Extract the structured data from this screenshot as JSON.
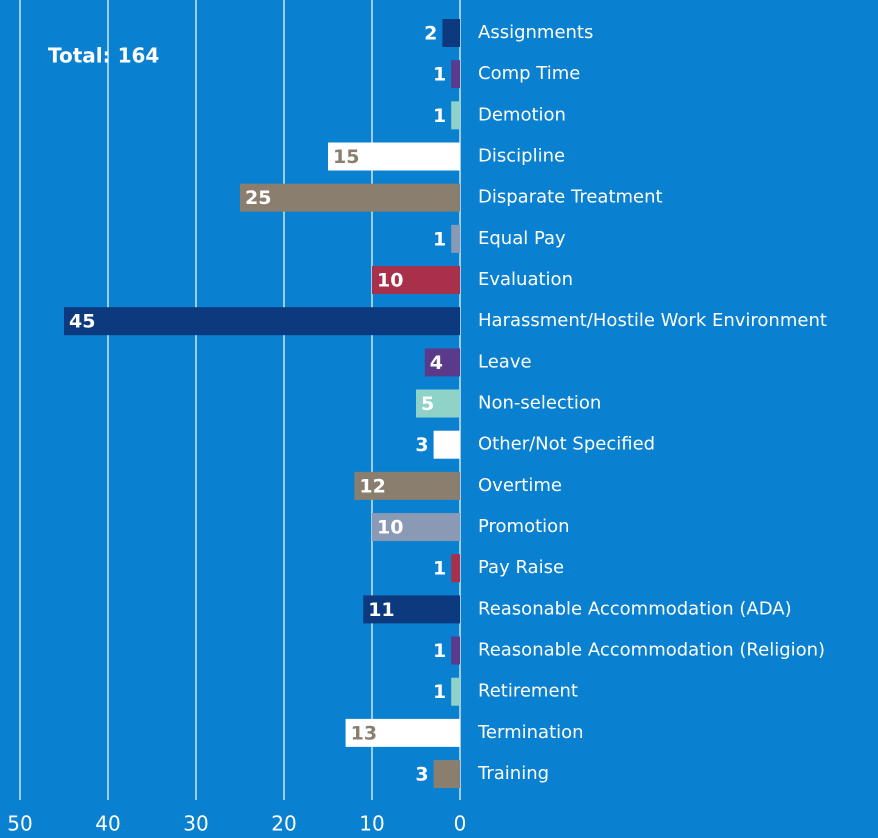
{
  "chart_data": {
    "type": "bar",
    "orientation": "horizontal",
    "annotation": "Total: 164",
    "categories": [
      "Assignments",
      "Comp Time",
      "Demotion",
      "Discipline",
      "Disparate Treatment",
      "Equal Pay",
      "Evaluation",
      "Harassment/Hostile Work Environment",
      "Leave",
      "Non-selection",
      "Other/Not Specified",
      "Overtime",
      "Promotion",
      "Pay Raise",
      "Reasonable Accommodation (ADA)",
      "Reasonable Accommodation (Religion)",
      "Retirement",
      "Termination",
      "Training"
    ],
    "values": [
      2,
      1,
      1,
      15,
      25,
      1,
      10,
      45,
      4,
      5,
      3,
      12,
      10,
      1,
      11,
      1,
      1,
      13,
      3
    ],
    "colors": [
      "#0d3a7e",
      "#5b3a8c",
      "#8fd3c8",
      "#ffffff",
      "#8a7f6e",
      "#8a9ab5",
      "#a8304a",
      "#0d3a7e",
      "#5b3a8c",
      "#8fd3c8",
      "#ffffff",
      "#8a7f6e",
      "#8a9ab5",
      "#a8304a",
      "#0d3a7e",
      "#5b3a8c",
      "#8fd3c8",
      "#ffffff",
      "#8a7f6e"
    ],
    "xlim": [
      50,
      0
    ],
    "xticks": [
      50,
      40,
      30,
      20,
      10,
      0
    ],
    "grid": true
  }
}
